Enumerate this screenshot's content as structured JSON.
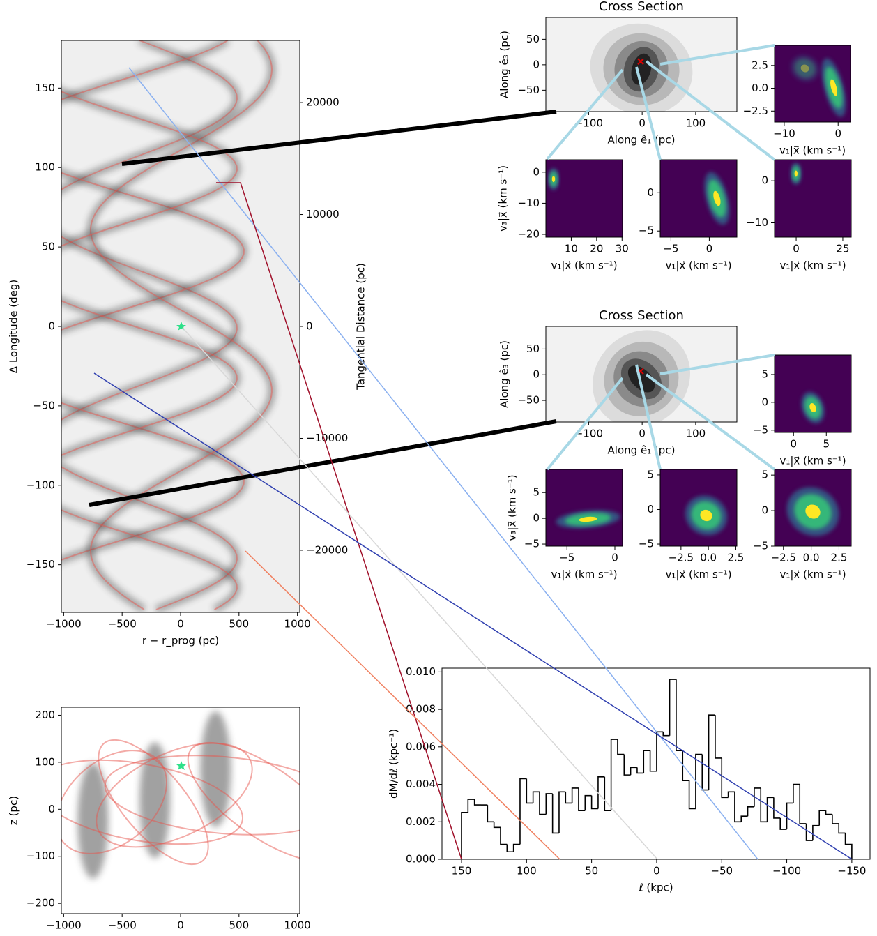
{
  "chart_data": [
    {
      "type": "heatmap",
      "x_label": "r − r_prog (pc)",
      "y_label": "Δ Longitude (deg)",
      "y2_label": "Tangential Distance (pc)",
      "xlim": [
        -1020,
        1020
      ],
      "ylim": [
        -180,
        180
      ],
      "y2lim": [
        -25550,
        25550
      ],
      "xticks": [
        {
          "value": -1000,
          "label": "−1000"
        },
        {
          "value": -500,
          "label": "−500"
        },
        0,
        500,
        1000
      ],
      "yticks": [
        {
          "value": -150,
          "label": "−150"
        },
        {
          "value": -100,
          "label": "−100"
        },
        {
          "value": -50,
          "label": "−50"
        },
        0,
        50,
        100,
        150
      ],
      "y2ticks": [
        {
          "value": -20000,
          "label": "−20000"
        },
        {
          "value": -10000,
          "label": "−10000"
        },
        0,
        10000,
        20000
      ]
    },
    {
      "type": "heatmap",
      "x_label": "r − r_prog (pc)",
      "y_label": "z (pc)",
      "xlim": [
        -1020,
        1020
      ],
      "ylim": [
        -222,
        217
      ],
      "xticks": [
        {
          "value": -1000,
          "label": "−1000"
        },
        {
          "value": -500,
          "label": "−500"
        },
        0,
        500,
        1000
      ],
      "yticks": [
        {
          "value": -200,
          "label": "−200"
        },
        {
          "value": -100,
          "label": "−100"
        },
        0,
        100,
        200
      ]
    },
    {
      "type": "heatmap",
      "title": "Cross Section",
      "x_label": "Along ê₁ (pc)",
      "y_label": "Along ê₃ (pc)",
      "xlim": [
        -180,
        177
      ],
      "ylim": [
        -92,
        93
      ],
      "xticks": [
        {
          "value": -100,
          "label": "−100"
        },
        0,
        100
      ],
      "yticks": [
        {
          "value": -50,
          "label": "−50"
        },
        0,
        50
      ]
    },
    {
      "type": "heatmap",
      "x_label": "v₁|x⃗ (km s⁻¹)",
      "xlim": [
        -11.8,
        2.3
      ],
      "ylim": [
        -3.7,
        4.7
      ],
      "xticks": [
        {
          "value": -10,
          "label": "−10"
        },
        0
      ],
      "yticks": [
        {
          "value": -2.5,
          "label": "−2.5"
        },
        {
          "value": 0,
          "label": "0.0"
        },
        2.5
      ]
    },
    {
      "type": "heatmap",
      "x_label": "v₁|x⃗ (km s⁻¹)",
      "y_label": "v₃|x⃗ (km s⁻¹)",
      "xlim": [
        0,
        30.2
      ],
      "ylim": [
        -20.9,
        4
      ],
      "xticks": [
        10,
        20,
        30
      ],
      "yticks": [
        {
          "value": -20,
          "label": "−20"
        },
        {
          "value": -10,
          "label": "−10"
        },
        0
      ]
    },
    {
      "type": "heatmap",
      "x_label": "v₁|x⃗ (km s⁻¹)",
      "xlim": [
        -6.4,
        3.6
      ],
      "ylim": [
        -5.8,
        4.3
      ],
      "xticks": [
        {
          "value": -5,
          "label": "−5"
        },
        0
      ],
      "yticks": [
        {
          "value": -5,
          "label": "−5"
        },
        0
      ]
    },
    {
      "type": "heatmap",
      "x_label": "v₁|x⃗ (km s⁻¹)",
      "xlim": [
        -11.6,
        29.5
      ],
      "ylim": [
        -13.4,
        5
      ],
      "xticks": [
        0,
        25
      ],
      "yticks": [
        {
          "value": -10,
          "label": "−10"
        },
        0
      ]
    },
    {
      "type": "heatmap",
      "title": "Cross Section",
      "x_label": "Along ê₁ (pc)",
      "y_label": "Along ê₃ (pc)",
      "xlim": [
        -180,
        177
      ],
      "ylim": [
        -92,
        94
      ],
      "xticks": [
        {
          "value": -100,
          "label": "−100"
        },
        0,
        100
      ],
      "yticks": [
        {
          "value": -50,
          "label": "−50"
        },
        0,
        50
      ]
    },
    {
      "type": "heatmap",
      "x_label": "v₁|x⃗ (km s⁻¹)",
      "xlim": [
        -2.9,
        8.8
      ],
      "ylim": [
        -5.4,
        8.5
      ],
      "xticks": [
        0,
        5
      ],
      "yticks": [
        {
          "value": -5,
          "label": "−5"
        },
        0,
        5
      ]
    },
    {
      "type": "heatmap",
      "x_label": "v₁|x⃗ (km s⁻¹)",
      "y_label": "v₃|x⃗ (km s⁻¹)",
      "xlim": [
        -7.2,
        0.8
      ],
      "ylim": [
        -5.4,
        9.5
      ],
      "xticks": [
        {
          "value": -5,
          "label": "−5"
        },
        0
      ],
      "yticks": [
        {
          "value": -5,
          "label": "−5"
        },
        0,
        5
      ]
    },
    {
      "type": "heatmap",
      "x_label": "v₁|x⃗ (km s⁻¹)",
      "xlim": [
        -4.4,
        2.6
      ],
      "ylim": [
        -5.3,
        5.8
      ],
      "xticks": [
        {
          "value": -2.5,
          "label": "−2.5"
        },
        {
          "value": 0,
          "label": "0.0"
        },
        2.5
      ],
      "yticks": [
        {
          "value": -5,
          "label": "−5"
        },
        0,
        5
      ]
    },
    {
      "type": "heatmap",
      "x_label": "v₁|x⃗ (km s⁻¹)",
      "xlim": [
        -3.3,
        3.6
      ],
      "ylim": [
        -5,
        5.8
      ],
      "xticks": [
        {
          "value": -2.5,
          "label": "−2.5"
        },
        {
          "value": 0,
          "label": "0.0"
        },
        2.5
      ],
      "yticks": [
        {
          "value": -5,
          "label": "−5"
        },
        0,
        5
      ]
    },
    {
      "type": "histogram",
      "x_label": "ℓ (kpc)",
      "y_label": "dM/dℓ (kpc⁻¹)",
      "color": "#000000",
      "xlim": [
        165,
        -164
      ],
      "ylim": [
        0,
        0.0102
      ],
      "xticks": [
        150,
        100,
        50,
        0,
        {
          "value": -50,
          "label": "−50"
        },
        {
          "value": -100,
          "label": "−100"
        },
        {
          "value": -150,
          "label": "−150"
        }
      ],
      "yticks": [
        {
          "value": 0,
          "label": "0.000"
        },
        {
          "value": 0.002,
          "label": "0.002"
        },
        {
          "value": 0.004,
          "label": "0.004"
        },
        {
          "value": 0.006,
          "label": "0.006"
        },
        {
          "value": 0.008,
          "label": "0.008"
        },
        {
          "value": 0.01,
          "label": "0.010"
        }
      ],
      "bins": [
        150,
        145,
        140,
        135,
        130,
        125,
        120,
        115,
        110,
        105,
        100,
        95,
        90,
        85,
        80,
        75,
        70,
        65,
        60,
        55,
        50,
        45,
        40,
        35,
        30,
        25,
        20,
        15,
        10,
        5,
        0,
        -5,
        -10,
        -15,
        -20,
        -25,
        -30,
        -35,
        -40,
        -45,
        -50,
        -55,
        -60,
        -65,
        -70,
        -75,
        -80,
        -85,
        -90,
        -95,
        -100,
        -105,
        -110,
        -115,
        -120,
        -125,
        -130,
        -135,
        -140,
        -145,
        -150
      ],
      "values": [
        0.0025,
        0.0032,
        0.0029,
        0.0029,
        0.002,
        0.0017,
        0.0008,
        0.0004,
        0.0008,
        0.0043,
        0.003,
        0.0036,
        0.0024,
        0.0035,
        0.0014,
        0.0036,
        0.003,
        0.0038,
        0.0026,
        0.0034,
        0.0027,
        0.0044,
        0.0026,
        0.0064,
        0.0056,
        0.0045,
        0.0049,
        0.0046,
        0.0058,
        0.0047,
        0.0068,
        0.0066,
        0.0096,
        0.0058,
        0.0042,
        0.0027,
        0.0056,
        0.0037,
        0.0077,
        0.0054,
        0.0033,
        0.0036,
        0.002,
        0.0023,
        0.0028,
        0.0038,
        0.002,
        0.0033,
        0.0022,
        0.0016,
        0.003,
        0.004,
        0.0019,
        0.001,
        0.0018,
        0.0026,
        0.0024,
        0.0019,
        0.0014,
        0.0008
      ]
    }
  ]
}
